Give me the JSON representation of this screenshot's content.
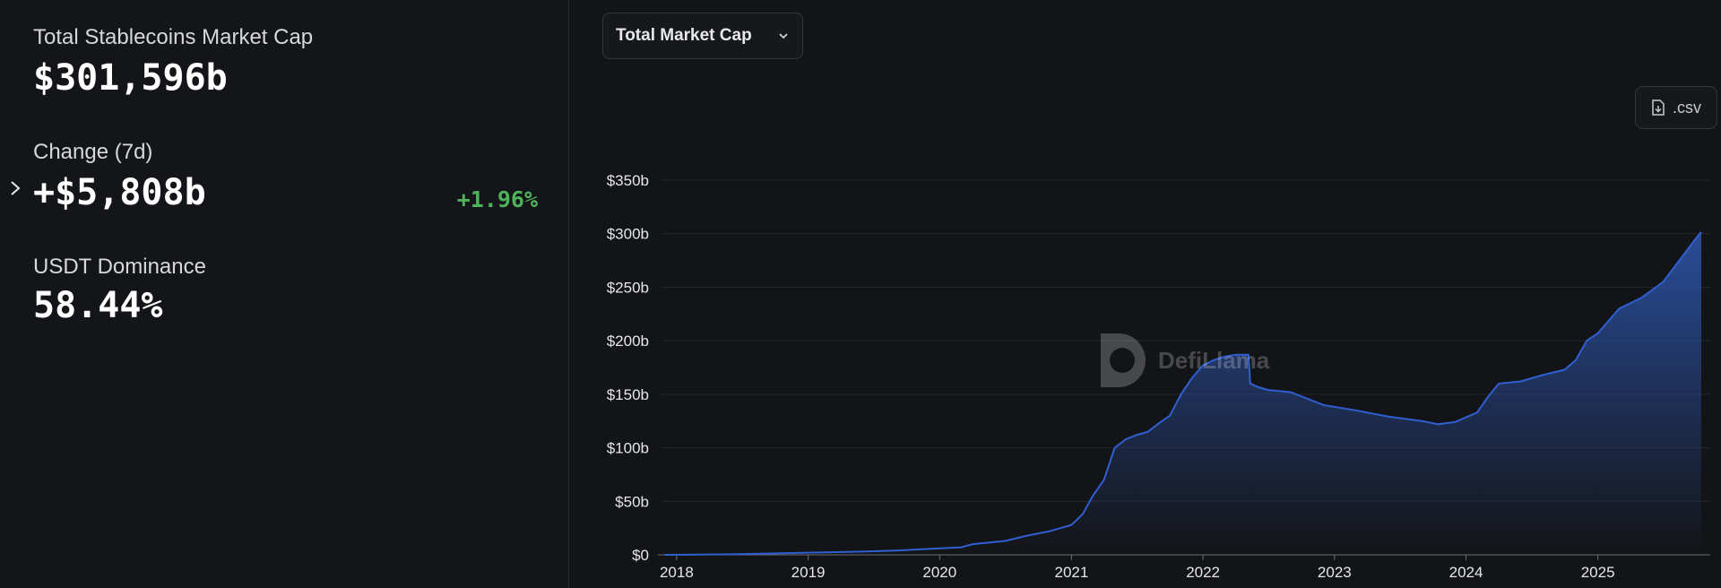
{
  "sidebar": {
    "total_label": "Total Stablecoins Market Cap",
    "total_value": "$301,596b",
    "change_label": "Change (7d)",
    "change_value": "+$5,808b",
    "change_pct": "+1.96%",
    "dominance_label": "USDT Dominance",
    "dominance_value": "58.44%"
  },
  "toolbar": {
    "dropdown_label": "Total Market Cap",
    "csv_label": ".csv"
  },
  "watermark": {
    "text": "DefiLlama"
  },
  "colors": {
    "line": "#2f5fd0",
    "area_top": "#2b4f9e",
    "positive": "#4fb25a"
  },
  "chart_data": {
    "type": "area",
    "title": "",
    "xlabel": "",
    "ylabel": "",
    "ylim": [
      0,
      350
    ],
    "y_ticks": [
      "$0",
      "$50b",
      "$100b",
      "$150b",
      "$200b",
      "$250b",
      "$300b",
      "$350b"
    ],
    "x_ticks": [
      "2018",
      "2019",
      "2020",
      "2021",
      "2022",
      "2023",
      "2024",
      "2025"
    ],
    "grid": true,
    "series": [
      {
        "points": [
          [
            "2017-11-28",
            0
          ],
          [
            "2018-06-01",
            0.5
          ],
          [
            "2019-01-01",
            2
          ],
          [
            "2019-06-01",
            3
          ],
          [
            "2019-09-01",
            4
          ],
          [
            "2020-01-01",
            6
          ],
          [
            "2020-03-01",
            7
          ],
          [
            "2020-04-01",
            10
          ],
          [
            "2020-07-01",
            13
          ],
          [
            "2020-09-01",
            18
          ],
          [
            "2020-11-01",
            22
          ],
          [
            "2021-01-01",
            28
          ],
          [
            "2021-02-01",
            38
          ],
          [
            "2021-03-01",
            55
          ],
          [
            "2021-04-01",
            70
          ],
          [
            "2021-05-01",
            100
          ],
          [
            "2021-06-01",
            108
          ],
          [
            "2021-07-01",
            112
          ],
          [
            "2021-08-01",
            115
          ],
          [
            "2021-09-01",
            123
          ],
          [
            "2021-10-01",
            130
          ],
          [
            "2021-11-01",
            150
          ],
          [
            "2021-12-01",
            165
          ],
          [
            "2022-01-01",
            177
          ],
          [
            "2022-02-01",
            182
          ],
          [
            "2022-03-01",
            185
          ],
          [
            "2022-04-01",
            187
          ],
          [
            "2022-05-07",
            187
          ],
          [
            "2022-05-12",
            160
          ],
          [
            "2022-06-01",
            157
          ],
          [
            "2022-07-01",
            154
          ],
          [
            "2022-09-01",
            152
          ],
          [
            "2022-12-01",
            140
          ],
          [
            "2023-03-01",
            135
          ],
          [
            "2023-06-01",
            129
          ],
          [
            "2023-09-01",
            125
          ],
          [
            "2023-10-15",
            122
          ],
          [
            "2023-12-01",
            124
          ],
          [
            "2024-02-01",
            133
          ],
          [
            "2024-03-01",
            147
          ],
          [
            "2024-04-01",
            160
          ],
          [
            "2024-06-01",
            162
          ],
          [
            "2024-08-01",
            168
          ],
          [
            "2024-10-01",
            173
          ],
          [
            "2024-11-01",
            182
          ],
          [
            "2024-12-01",
            200
          ],
          [
            "2025-01-01",
            207
          ],
          [
            "2025-03-01",
            230
          ],
          [
            "2025-05-01",
            240
          ],
          [
            "2025-07-01",
            255
          ],
          [
            "2025-08-15",
            275
          ],
          [
            "2025-10-01",
            296
          ],
          [
            "2025-10-15",
            301.6
          ]
        ]
      }
    ]
  }
}
